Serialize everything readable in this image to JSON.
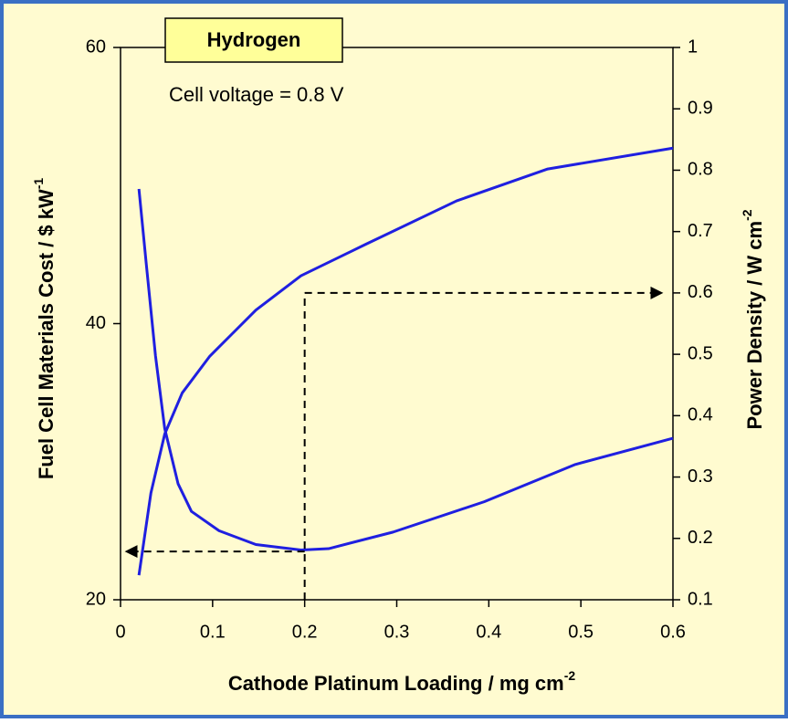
{
  "chart_data": {
    "type": "line",
    "title": "Hydrogen",
    "annotation": "Cell voltage = 0.8 V",
    "x_label": "Cathode Platinum Loading / mg cm",
    "x_label_sup": "-2",
    "y_label": "Fuel Cell Materials Cost / $ kW",
    "y_label_sup": "-1",
    "y2_label": "Power Density / W cm",
    "y2_label_sup": "-2",
    "xlim": [
      0,
      0.6
    ],
    "xticks": [
      0,
      0.1,
      0.2,
      0.3,
      0.4,
      0.5,
      0.6
    ],
    "ylim": [
      20,
      60
    ],
    "yticks": [
      20,
      40,
      60
    ],
    "y2lim": [
      0.1,
      1
    ],
    "y2ticks": [
      0.1,
      0.2,
      0.3,
      0.4,
      0.5,
      0.6,
      0.7,
      0.8,
      0.9,
      1
    ],
    "series": [
      {
        "name": "Cost",
        "color": "#1f1fe0",
        "axis": "y",
        "x": [
          0.02,
          0.028,
          0.038,
          0.048,
          0.0625,
          0.077,
          0.107,
          0.147,
          0.196,
          0.226,
          0.296,
          0.395,
          0.494,
          0.6
        ],
        "values": [
          49.75,
          44.3,
          37.65,
          32.4,
          28.4,
          26.4,
          25.0,
          24.0,
          23.6,
          23.7,
          24.9,
          27.1,
          29.8,
          31.7
        ]
      },
      {
        "name": "Power density",
        "color": "#1f1fe0",
        "axis": "y2",
        "x": [
          0.02,
          0.033,
          0.048,
          0.067,
          0.097,
          0.147,
          0.196,
          0.266,
          0.365,
          0.464,
          0.6
        ],
        "values": [
          0.14,
          0.274,
          0.37,
          0.437,
          0.497,
          0.572,
          0.628,
          0.679,
          0.75,
          0.802,
          0.836
        ]
      }
    ],
    "guide": {
      "x": 0.2,
      "cost": 23.5,
      "power": 0.6
    }
  }
}
